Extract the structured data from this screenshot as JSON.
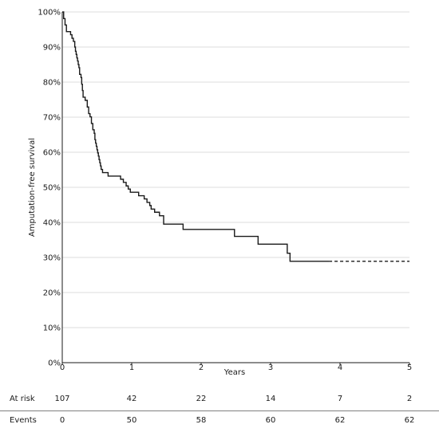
{
  "chart_data": {
    "type": "line",
    "ylabel": "Amputation-free survival",
    "xlabel": "Years",
    "xlim": [
      0,
      5
    ],
    "ylim": [
      0,
      100
    ],
    "x_ticks": [
      {
        "value": 0,
        "label": "0"
      },
      {
        "value": 1,
        "label": "1"
      },
      {
        "value": 2,
        "label": "2"
      },
      {
        "value": 3,
        "label": "3"
      },
      {
        "value": 4,
        "label": "4"
      },
      {
        "value": 5,
        "label": "5"
      }
    ],
    "y_ticks": [
      {
        "value": 0,
        "label": "0%"
      },
      {
        "value": 10,
        "label": "10%"
      },
      {
        "value": 20,
        "label": "20%"
      },
      {
        "value": 30,
        "label": "30%"
      },
      {
        "value": 40,
        "label": "40%"
      },
      {
        "value": 50,
        "label": "50%"
      },
      {
        "value": 60,
        "label": "60%"
      },
      {
        "value": 70,
        "label": "70%"
      },
      {
        "value": 80,
        "label": "80%"
      },
      {
        "value": 90,
        "label": "90%"
      },
      {
        "value": 100,
        "label": "100%"
      }
    ],
    "grid": "horizontal",
    "series": [
      {
        "style": "step",
        "points": [
          [
            0,
            100
          ],
          [
            0.02,
            98.1
          ],
          [
            0.04,
            96.3
          ],
          [
            0.06,
            94.4
          ],
          [
            0.12,
            93.5
          ],
          [
            0.14,
            92.5
          ],
          [
            0.16,
            91.6
          ],
          [
            0.18,
            90.0
          ],
          [
            0.19,
            88.8
          ],
          [
            0.2,
            87.9
          ],
          [
            0.21,
            86.9
          ],
          [
            0.22,
            86.0
          ],
          [
            0.23,
            85.0
          ],
          [
            0.24,
            84.1
          ],
          [
            0.25,
            82.2
          ],
          [
            0.27,
            81.3
          ],
          [
            0.28,
            79.4
          ],
          [
            0.29,
            77.6
          ],
          [
            0.3,
            75.7
          ],
          [
            0.33,
            74.8
          ],
          [
            0.36,
            72.9
          ],
          [
            0.38,
            71.0
          ],
          [
            0.4,
            70.1
          ],
          [
            0.42,
            68.2
          ],
          [
            0.44,
            66.4
          ],
          [
            0.46,
            65.4
          ],
          [
            0.47,
            63.6
          ],
          [
            0.48,
            62.6
          ],
          [
            0.49,
            61.7
          ],
          [
            0.5,
            60.7
          ],
          [
            0.51,
            59.8
          ],
          [
            0.52,
            58.9
          ],
          [
            0.53,
            57.9
          ],
          [
            0.54,
            57.0
          ],
          [
            0.55,
            56.1
          ],
          [
            0.56,
            55.1
          ],
          [
            0.58,
            54.2
          ],
          [
            0.66,
            53.2
          ],
          [
            0.84,
            52.3
          ],
          [
            0.88,
            51.4
          ],
          [
            0.92,
            50.4
          ],
          [
            0.95,
            49.5
          ],
          [
            0.98,
            48.6
          ],
          [
            1.1,
            47.6
          ],
          [
            1.18,
            46.7
          ],
          [
            1.22,
            45.7
          ],
          [
            1.26,
            44.8
          ],
          [
            1.28,
            43.8
          ],
          [
            1.33,
            42.9
          ],
          [
            1.4,
            41.9
          ],
          [
            1.46,
            39.5
          ],
          [
            1.74,
            38.0
          ],
          [
            2.48,
            36.0
          ],
          [
            2.82,
            33.8
          ],
          [
            3.24,
            31.2
          ],
          [
            3.28,
            28.9
          ],
          [
            3.84,
            28.9
          ]
        ]
      },
      {
        "style": "dashed",
        "points": [
          [
            3.84,
            28.9
          ],
          [
            5,
            28.9
          ]
        ]
      }
    ],
    "risk_table": {
      "rows": [
        {
          "label": "At risk",
          "values": [
            "107",
            "42",
            "22",
            "14",
            "7",
            "2"
          ]
        },
        {
          "label": "Events",
          "values": [
            "0",
            "50",
            "58",
            "60",
            "62",
            "62"
          ]
        }
      ],
      "at_years": [
        0,
        1,
        2,
        3,
        4,
        5
      ]
    }
  }
}
